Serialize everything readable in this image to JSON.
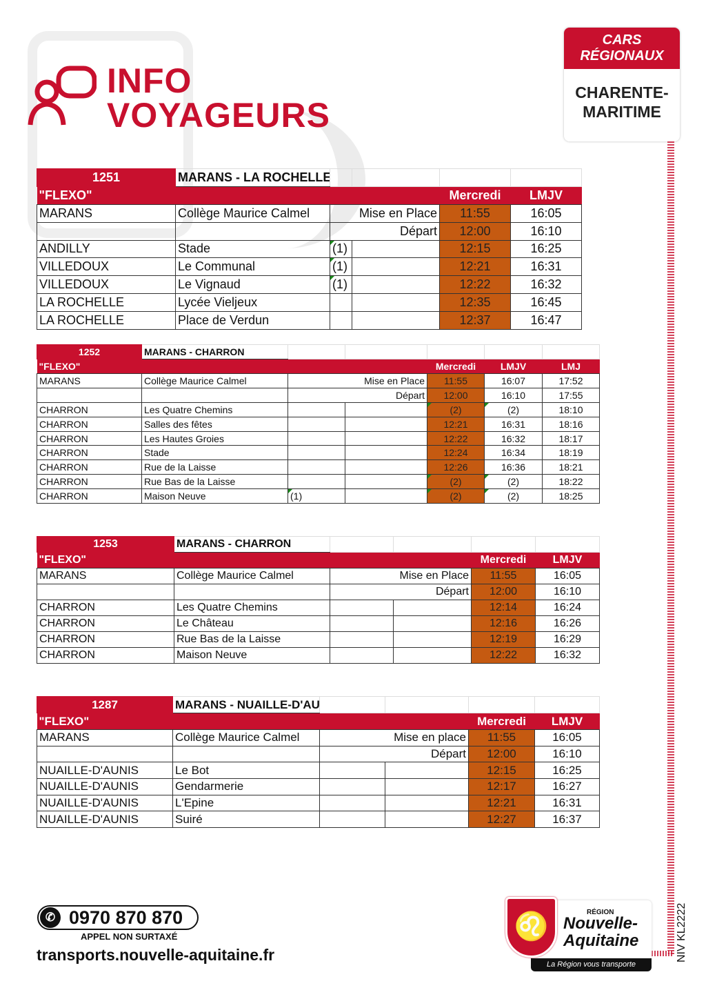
{
  "header": {
    "title_line1": "INFO",
    "title_line2": "VOYAGEURS",
    "badge_top": "CARS RÉGIONAUX",
    "badge_bottom": "CHARENTE-MARITIME"
  },
  "colors": {
    "brand_red": "#c8102e",
    "wednesday_fill": "#c55a11"
  },
  "tables": [
    {
      "code": "1251",
      "route": "MARANS - LA ROCHELLE",
      "service": "\"FLEXO\"",
      "days": [
        "Mercredi",
        "LMJV"
      ],
      "rows": [
        [
          "MARANS",
          "Collège Maurice Calmel",
          "",
          "Mise en Place",
          "11:55",
          "16:05"
        ],
        [
          "",
          "",
          "",
          "Départ",
          "12:00",
          "16:10"
        ],
        [
          "ANDILLY",
          "Stade",
          "(1)",
          "",
          "12:15",
          "16:25"
        ],
        [
          "VILLEDOUX",
          "Le Communal",
          "(1)",
          "",
          "12:21",
          "16:31"
        ],
        [
          "VILLEDOUX",
          "Le Vignaud",
          "(1)",
          "",
          "12:22",
          "16:32"
        ],
        [
          "LA ROCHELLE",
          "Lycée Vieljeux",
          "",
          "",
          "12:35",
          "16:45"
        ],
        [
          "LA ROCHELLE",
          "Place de Verdun",
          "",
          "",
          "12:37",
          "16:47"
        ]
      ]
    },
    {
      "code": "1252",
      "route": "MARANS - CHARRON",
      "service": "\"FLEXO\"",
      "days": [
        "Mercredi",
        "LMJV",
        "LMJ"
      ],
      "rows": [
        [
          "MARANS",
          "Collège Maurice Calmel",
          "",
          "Mise en Place",
          "11:55",
          "16:07",
          "17:52"
        ],
        [
          "",
          "",
          "",
          "Départ",
          "12:00",
          "16:10",
          "17:55"
        ],
        [
          "CHARRON",
          "Les Quatre Chemins",
          "",
          "",
          "(2)",
          "(2)",
          "18:10"
        ],
        [
          "CHARRON",
          "Salles des fêtes",
          "",
          "",
          "12:21",
          "16:31",
          "18:16"
        ],
        [
          "CHARRON",
          "Les Hautes Groies",
          "",
          "",
          "12:22",
          "16:32",
          "18:17"
        ],
        [
          "CHARRON",
          "Stade",
          "",
          "",
          "12:24",
          "16:34",
          "18:19"
        ],
        [
          "CHARRON",
          "Rue de la Laisse",
          "",
          "",
          "12:26",
          "16:36",
          "18:21"
        ],
        [
          "CHARRON",
          "Rue Bas de la Laisse",
          "",
          "",
          "(2)",
          "(2)",
          "18:22"
        ],
        [
          "CHARRON",
          "Maison Neuve",
          "(1)",
          "",
          "(2)",
          "(2)",
          "18:25"
        ]
      ]
    },
    {
      "code": "1253",
      "route": "MARANS - CHARRON",
      "service": "\"FLEXO\"",
      "days": [
        "Mercredi",
        "LMJV"
      ],
      "rows": [
        [
          "MARANS",
          "Collège Maurice Calmel",
          "",
          "Mise en Place",
          "11:55",
          "16:05"
        ],
        [
          "",
          "",
          "",
          "Départ",
          "12:00",
          "16:10"
        ],
        [
          "CHARRON",
          "Les Quatre Chemins",
          "",
          "",
          "12:14",
          "16:24"
        ],
        [
          "CHARRON",
          "Le Château",
          "",
          "",
          "12:16",
          "16:26"
        ],
        [
          "CHARRON",
          "Rue Bas de la Laisse",
          "",
          "",
          "12:19",
          "16:29"
        ],
        [
          "CHARRON",
          "Maison Neuve",
          "",
          "",
          "12:22",
          "16:32"
        ]
      ]
    },
    {
      "code": "1287",
      "route": "MARANS - NUAILLE-D'AUNIS",
      "service": "\"FLEXO\"",
      "days": [
        "Mercredi",
        "LMJV"
      ],
      "rows": [
        [
          "MARANS",
          "Collège Maurice Calmel",
          "",
          "Mise en place",
          "11:55",
          "16:05"
        ],
        [
          "",
          "",
          "",
          "Départ",
          "12:00",
          "16:10"
        ],
        [
          "NUAILLE-D'AUNIS",
          "Le Bot",
          "",
          "",
          "12:15",
          "16:25"
        ],
        [
          "NUAILLE-D'AUNIS",
          "Gendarmerie",
          "",
          "",
          "12:17",
          "16:27"
        ],
        [
          "NUAILLE-D'AUNIS",
          "L'Epine",
          "",
          "",
          "12:21",
          "16:31"
        ],
        [
          "NUAILLE-D'AUNIS",
          "Suiré",
          "",
          "",
          "12:27",
          "16:37"
        ]
      ]
    }
  ],
  "footer": {
    "phone": "0970 870 870",
    "phone_note": "APPEL NON SURTAXÉ",
    "website": "transports.nouvelle-aquitaine.fr",
    "region_small": "RÉGION",
    "region_name": "Nouvelle-Aquitaine",
    "region_tagline": "La Région vous transporte",
    "doc_ref": "NIV KL2222"
  }
}
